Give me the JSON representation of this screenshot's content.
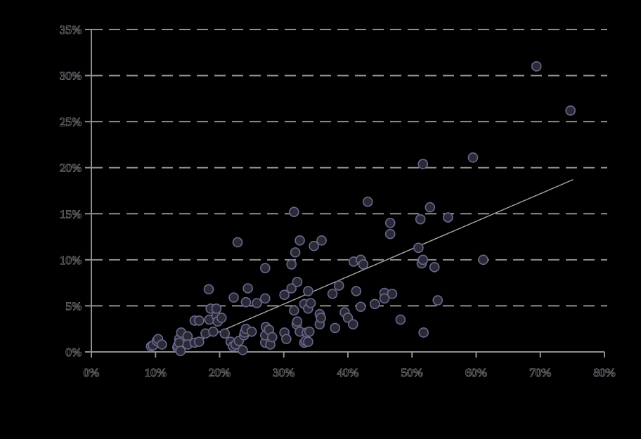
{
  "chart_data": {
    "type": "scatter",
    "title": "",
    "xlabel": "",
    "ylabel": "",
    "xlim": [
      0,
      80
    ],
    "ylim": [
      0,
      35
    ],
    "x_tick_step": 10,
    "y_tick_step": 5,
    "x_tick_labels": [
      "0%",
      "10%",
      "20%",
      "30%",
      "40%",
      "50%",
      "60%",
      "70%",
      "80%"
    ],
    "y_tick_labels": [
      "0%",
      "5%",
      "10%",
      "15%",
      "20%",
      "25%",
      "30%",
      "35%"
    ],
    "grid": "horizontal-dashed",
    "legend": "none",
    "points": [
      [
        9.3,
        0.6
      ],
      [
        9.6,
        0.7
      ],
      [
        10.2,
        1.2
      ],
      [
        10.4,
        1.4
      ],
      [
        11.0,
        0.8
      ],
      [
        13.4,
        0.5
      ],
      [
        13.5,
        0.7
      ],
      [
        13.7,
        1.4
      ],
      [
        13.7,
        1.0
      ],
      [
        13.9,
        0.1
      ],
      [
        14.0,
        2.1
      ],
      [
        15.0,
        1.7
      ],
      [
        15.0,
        0.8
      ],
      [
        16.1,
        3.4
      ],
      [
        16.8,
        3.4
      ],
      [
        16.1,
        1.0
      ],
      [
        16.8,
        1.1
      ],
      [
        17.8,
        2.0
      ],
      [
        18.3,
        6.8
      ],
      [
        18.4,
        3.5
      ],
      [
        18.6,
        4.7
      ],
      [
        19.0,
        2.2
      ],
      [
        19.5,
        3.9
      ],
      [
        19.5,
        4.7
      ],
      [
        19.7,
        3.3
      ],
      [
        20.3,
        3.7
      ],
      [
        20.8,
        2.0
      ],
      [
        21.7,
        1.1
      ],
      [
        22.1,
        0.6
      ],
      [
        22.2,
        5.9
      ],
      [
        22.5,
        0.8
      ],
      [
        22.8,
        11.9
      ],
      [
        23.0,
        1.2
      ],
      [
        23.6,
        0.2
      ],
      [
        23.8,
        1.8
      ],
      [
        23.9,
        2.1
      ],
      [
        24.1,
        5.4
      ],
      [
        24.1,
        2.5
      ],
      [
        24.4,
        6.9
      ],
      [
        25.0,
        2.2
      ],
      [
        25.8,
        5.3
      ],
      [
        27.1,
        5.8
      ],
      [
        27.1,
        9.1
      ],
      [
        27.1,
        1.0
      ],
      [
        27.1,
        1.8
      ],
      [
        27.2,
        2.7
      ],
      [
        27.7,
        2.4
      ],
      [
        27.9,
        0.8
      ],
      [
        28.2,
        1.6
      ],
      [
        30.1,
        6.2
      ],
      [
        30.1,
        2.1
      ],
      [
        30.4,
        1.4
      ],
      [
        31.2,
        6.9
      ],
      [
        31.2,
        9.5
      ],
      [
        31.6,
        15.2
      ],
      [
        31.6,
        4.5
      ],
      [
        31.8,
        10.8
      ],
      [
        32.0,
        3.0
      ],
      [
        32.1,
        7.6
      ],
      [
        32.1,
        3.3
      ],
      [
        32.5,
        12.1
      ],
      [
        32.5,
        2.2
      ],
      [
        33.2,
        5.2
      ],
      [
        33.2,
        1.0
      ],
      [
        33.4,
        1.2
      ],
      [
        33.6,
        2.1
      ],
      [
        33.8,
        6.6
      ],
      [
        33.8,
        4.7
      ],
      [
        33.8,
        1.1
      ],
      [
        34.0,
        2.2
      ],
      [
        34.2,
        5.3
      ],
      [
        34.7,
        11.5
      ],
      [
        35.6,
        4.1
      ],
      [
        35.6,
        3.0
      ],
      [
        35.8,
        3.7
      ],
      [
        35.9,
        12.1
      ],
      [
        37.6,
        6.3
      ],
      [
        38.0,
        2.6
      ],
      [
        38.6,
        7.2
      ],
      [
        39.5,
        4.3
      ],
      [
        40.0,
        3.7
      ],
      [
        40.8,
        3.0
      ],
      [
        40.9,
        9.8
      ],
      [
        41.3,
        6.6
      ],
      [
        42.0,
        4.9
      ],
      [
        42.0,
        10.0
      ],
      [
        42.4,
        9.5
      ],
      [
        43.1,
        16.3
      ],
      [
        44.2,
        5.2
      ],
      [
        45.7,
        6.4
      ],
      [
        45.7,
        5.8
      ],
      [
        46.6,
        14.0
      ],
      [
        46.6,
        12.8
      ],
      [
        46.9,
        6.3
      ],
      [
        48.2,
        3.5
      ],
      [
        51.0,
        11.3
      ],
      [
        51.3,
        14.4
      ],
      [
        51.5,
        9.6
      ],
      [
        51.7,
        10.0
      ],
      [
        51.7,
        20.4
      ],
      [
        51.8,
        2.1
      ],
      [
        52.8,
        15.7
      ],
      [
        53.5,
        9.2
      ],
      [
        54.0,
        5.6
      ],
      [
        55.6,
        14.6
      ],
      [
        59.5,
        21.1
      ],
      [
        61.1,
        10.0
      ],
      [
        69.4,
        31.0
      ],
      [
        74.7,
        26.2
      ]
    ],
    "trendline": {
      "x1": 13.0,
      "y1": 0.1,
      "x2": 75.1,
      "y2": 18.7
    },
    "colors": {
      "background": "#000000",
      "axis": "#8f8f8f",
      "grid": "#8f8f8f",
      "trend": "#a9a9a9",
      "point_fill": "#2a2a34",
      "point_stroke": "#686890",
      "label_fill": "#0d0d16",
      "label_halo": "#989898"
    }
  }
}
